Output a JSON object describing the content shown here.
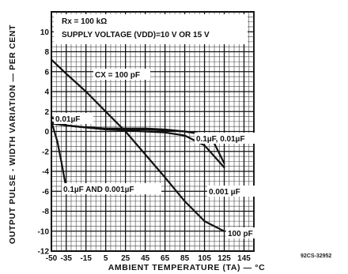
{
  "chart_data": {
    "type": "line",
    "title": "",
    "annotations": {
      "line1": "Rx = 100 kΩ",
      "line2": "SUPPLY VOLTAGE (VDD)=10 V OR 15 V"
    },
    "xlabel": "AMBIENT TEMPERATURE (TA) — °C",
    "ylabel": "OUTPUT PULSE - WIDTH VARIATION — PER CENT",
    "xlim": [
      -50,
      155
    ],
    "ylim": [
      -12,
      12
    ],
    "x_ticks": [
      -50,
      -35,
      -15,
      5,
      25,
      45,
      65,
      85,
      105,
      125,
      145
    ],
    "x_tick_labels": [
      "-50",
      "-35",
      "-15",
      "5",
      "25",
      "45",
      "65",
      "85",
      "105",
      "125",
      "145"
    ],
    "y_ticks": [
      10,
      8,
      6,
      4,
      2,
      0,
      -2,
      -4,
      -6,
      -8,
      -10,
      -12
    ],
    "y_tick_labels": [
      "10",
      "8",
      "6",
      "4",
      "2",
      "0",
      "-2",
      "-4",
      "-6",
      "-8",
      "-10",
      "-12"
    ],
    "grid": true,
    "series": [
      {
        "name": "Cx = 100 pF",
        "curve": "100pf",
        "x": [
          -50,
          -35,
          -15,
          5,
          25,
          45,
          65,
          85,
          105,
          125
        ],
        "y": [
          7.2,
          5.8,
          4.0,
          2.0,
          0.0,
          -2.3,
          -4.6,
          -7.0,
          -9.0,
          -10.0
        ]
      },
      {
        "name": "0.01 µF",
        "curve": "001uf",
        "x": [
          -50,
          -40,
          -35,
          -15,
          5,
          25,
          45,
          65,
          85,
          105,
          115,
          125
        ],
        "y": [
          1.4,
          1.0,
          0.6,
          0.4,
          0.3,
          0.3,
          0.3,
          0.2,
          0.0,
          -0.3,
          -1.2,
          -3.2
        ]
      },
      {
        "name": "0.1 µF, 0.01 µF",
        "curve": "01uf",
        "x": [
          -50,
          -35,
          -15,
          5,
          25,
          45,
          65,
          85,
          105,
          125
        ],
        "y": [
          0.9,
          0.6,
          0.4,
          0.3,
          0.2,
          0.2,
          0.1,
          0.0,
          -0.3,
          -1.0
        ]
      },
      {
        "name": "0.001 µF",
        "curve": "0001uf",
        "x": [
          -50,
          -35,
          -15,
          5,
          25,
          45,
          65,
          85,
          105,
          125
        ],
        "y": [
          0.8,
          0.6,
          0.4,
          0.2,
          0.1,
          0.0,
          -0.1,
          -0.4,
          -1.4,
          -3.6
        ]
      },
      {
        "name": "0.1 µF AND 0.001 µF",
        "curve": "steep",
        "x": [
          -50,
          -44,
          -40,
          -37,
          -35
        ],
        "y": [
          1.0,
          -1.0,
          -3.0,
          -4.6,
          -5.6
        ]
      }
    ],
    "curve_labels": {
      "cx100": "CX = 100 pF",
      "u001": "0.01µF",
      "u01_001": "0.1µF, 0.01µF",
      "u0001": "0.001 µF",
      "u01and": "0.1µF AND 0.001µF",
      "pf100": "100 pF"
    },
    "figure_ref": "92CS-32952"
  }
}
